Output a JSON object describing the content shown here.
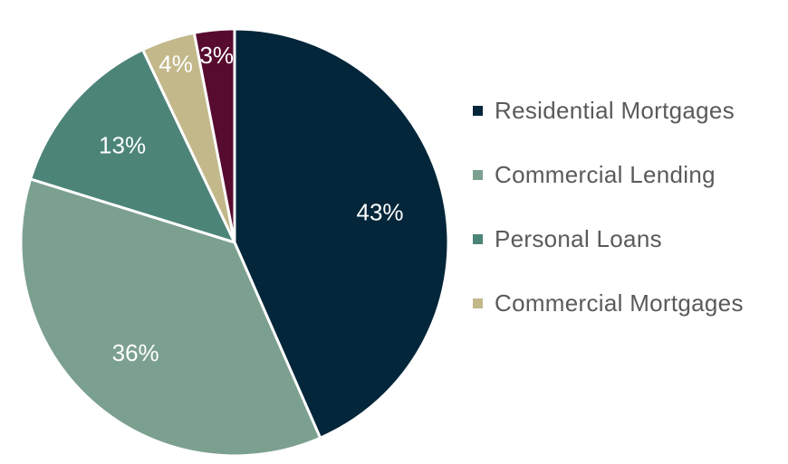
{
  "chart_data": {
    "type": "pie",
    "title": "",
    "start_angle_deg": 0,
    "direction": "clockwise",
    "slices": [
      {
        "name": "Residential Mortgages",
        "value": 43,
        "label": "43%",
        "color": "#03263a"
      },
      {
        "name": "Commercial Lending",
        "value": 36,
        "label": "36%",
        "color": "#7ca090"
      },
      {
        "name": "Personal Loans",
        "value": 13,
        "label": "13%",
        "color": "#4c8478"
      },
      {
        "name": "Commercial Mortgages",
        "value": 4,
        "label": "4%",
        "color": "#c2b88a"
      },
      {
        "name": "",
        "value": 3,
        "label": "3%",
        "color": "#570b2f"
      }
    ],
    "legend": {
      "placement": "right",
      "items": [
        {
          "name": "Residential Mortgages",
          "color": "#03263a"
        },
        {
          "name": "Commercial Lending",
          "color": "#7ca090"
        },
        {
          "name": "Personal Loans",
          "color": "#4c8478"
        },
        {
          "name": "Commercial Mortgages",
          "color": "#c2b88a"
        }
      ]
    }
  }
}
